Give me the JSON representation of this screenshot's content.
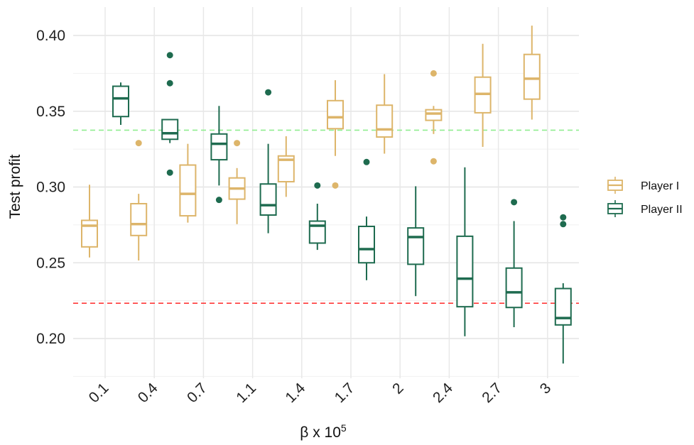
{
  "chart_data": {
    "type": "boxplot",
    "title": "",
    "xlabel_base": "β x 10",
    "xlabel_exp": "5",
    "ylabel": "Test profit",
    "ylim": [
      0.175,
      0.42
    ],
    "yticks": [
      0.2,
      0.25,
      0.3,
      0.35,
      0.4
    ],
    "ytick_labels": [
      "0.20",
      "0.25",
      "0.30",
      "0.35",
      "0.40"
    ],
    "categories": [
      "0.1",
      "0.4",
      "0.7",
      "1.1",
      "1.4",
      "1.7",
      "2",
      "2.4",
      "2.7",
      "3"
    ],
    "grid": true,
    "legend_position": "right",
    "reference_lines": [
      {
        "value": 0.3375,
        "color": "#90EE90",
        "style": "dashed"
      },
      {
        "value": 0.2233,
        "color": "#FF2A2A",
        "style": "dashed"
      }
    ],
    "series": [
      {
        "name": "Player I",
        "color": "#DDB56A",
        "boxes": [
          {
            "q1": 0.2605,
            "median": 0.2745,
            "q3": 0.278,
            "lo": 0.2535,
            "hi": 0.3015,
            "outliers": []
          },
          {
            "q1": 0.268,
            "median": 0.2755,
            "q3": 0.289,
            "lo": 0.2515,
            "hi": 0.2955,
            "outliers": [
              0.329
            ]
          },
          {
            "q1": 0.281,
            "median": 0.2955,
            "q3": 0.3145,
            "lo": 0.2765,
            "hi": 0.3285,
            "outliers": []
          },
          {
            "q1": 0.292,
            "median": 0.299,
            "q3": 0.306,
            "lo": 0.2755,
            "hi": 0.3125,
            "outliers": [
              0.329
            ]
          },
          {
            "q1": 0.3035,
            "median": 0.318,
            "q3": 0.3205,
            "lo": 0.2935,
            "hi": 0.3335,
            "outliers": []
          },
          {
            "q1": 0.3385,
            "median": 0.346,
            "q3": 0.357,
            "lo": 0.3205,
            "hi": 0.3705,
            "outliers": [
              0.301
            ]
          },
          {
            "q1": 0.333,
            "median": 0.338,
            "q3": 0.354,
            "lo": 0.322,
            "hi": 0.3745,
            "outliers": []
          },
          {
            "q1": 0.344,
            "median": 0.3485,
            "q3": 0.351,
            "lo": 0.335,
            "hi": 0.3535,
            "outliers": [
              0.375,
              0.317
            ]
          },
          {
            "q1": 0.349,
            "median": 0.3615,
            "q3": 0.3725,
            "lo": 0.3265,
            "hi": 0.3945,
            "outliers": []
          },
          {
            "q1": 0.358,
            "median": 0.3715,
            "q3": 0.3875,
            "lo": 0.3445,
            "hi": 0.4065,
            "outliers": []
          }
        ]
      },
      {
        "name": "Player II",
        "color": "#1E6B4F",
        "boxes": [
          {
            "q1": 0.3465,
            "median": 0.3585,
            "q3": 0.3665,
            "lo": 0.341,
            "hi": 0.369,
            "outliers": []
          },
          {
            "q1": 0.3315,
            "median": 0.3355,
            "q3": 0.3445,
            "lo": 0.329,
            "hi": 0.3445,
            "outliers": [
              0.387,
              0.3685,
              0.3095
            ]
          },
          {
            "q1": 0.318,
            "median": 0.3285,
            "q3": 0.335,
            "lo": 0.301,
            "hi": 0.3535,
            "outliers": [
              0.2915
            ]
          },
          {
            "q1": 0.2815,
            "median": 0.288,
            "q3": 0.302,
            "lo": 0.2695,
            "hi": 0.3285,
            "outliers": [
              0.3625
            ]
          },
          {
            "q1": 0.263,
            "median": 0.2745,
            "q3": 0.2775,
            "lo": 0.2585,
            "hi": 0.289,
            "outliers": [
              0.301
            ]
          },
          {
            "q1": 0.25,
            "median": 0.259,
            "q3": 0.274,
            "lo": 0.2385,
            "hi": 0.2805,
            "outliers": [
              0.3165
            ]
          },
          {
            "q1": 0.249,
            "median": 0.267,
            "q3": 0.273,
            "lo": 0.228,
            "hi": 0.3005,
            "outliers": []
          },
          {
            "q1": 0.221,
            "median": 0.2395,
            "q3": 0.2675,
            "lo": 0.2015,
            "hi": 0.313,
            "outliers": []
          },
          {
            "q1": 0.2205,
            "median": 0.2305,
            "q3": 0.2465,
            "lo": 0.2075,
            "hi": 0.2775,
            "outliers": [
              0.29
            ]
          },
          {
            "q1": 0.209,
            "median": 0.2135,
            "q3": 0.233,
            "lo": 0.1835,
            "hi": 0.2365,
            "outliers": [
              0.28,
              0.2755
            ]
          }
        ]
      }
    ]
  }
}
